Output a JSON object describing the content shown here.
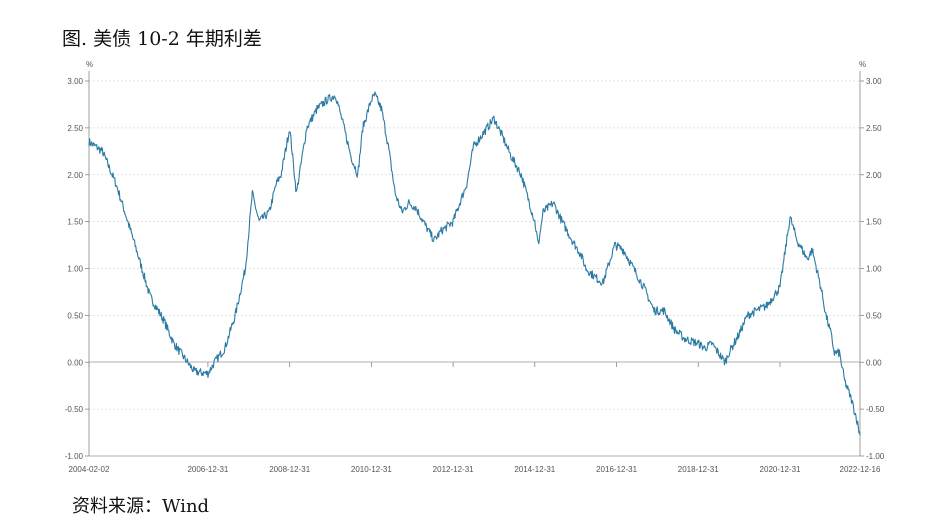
{
  "figure_title": "图. 美债 10-2 年期利差",
  "source_note": "资料来源：Wind",
  "chart_data": {
    "type": "line",
    "title": "图. 美债 10-2 年期利差",
    "xlabel": "",
    "ylabel": "%",
    "ylabel_right": "%",
    "ylim": [
      -1.0,
      3.0
    ],
    "yticks": [
      -1.0,
      -0.5,
      0.0,
      0.5,
      1.0,
      1.5,
      2.0,
      2.5,
      3.0
    ],
    "ytick_labels": [
      "-1.00",
      "-0.50",
      "0.00",
      "0.50",
      "1.00",
      "1.50",
      "2.00",
      "2.50",
      "3.00"
    ],
    "xlim": [
      "2004-02-02",
      "2022-12-16"
    ],
    "xtick_dates": [
      "2004-02-02",
      "2006-12-31",
      "2008-12-31",
      "2010-12-31",
      "2012-12-31",
      "2014-12-31",
      "2016-12-31",
      "2018-12-31",
      "2020-12-31",
      "2022-12-16"
    ],
    "xtick_labels": [
      "2004-02-02",
      "2006-12-31",
      "2008-12-31",
      "2010-12-31",
      "2012-12-31",
      "2014-12-31",
      "2016-12-31",
      "2018-12-31",
      "2020-12-31",
      "2022-12-16"
    ],
    "grid": "horizontal dashed",
    "line_color": "#2a7aa3",
    "series": [
      {
        "x": [
          "2004-02-02",
          "2004-06-01",
          "2004-10-01",
          "2005-01-01",
          "2005-04-01",
          "2005-08-01",
          "2005-12-01",
          "2006-03-01",
          "2006-06-01",
          "2006-09-01",
          "2006-12-31",
          "2007-03-01",
          "2007-06-01",
          "2007-09-01",
          "2007-12-01",
          "2008-02-01",
          "2008-04-01",
          "2008-07-01",
          "2008-09-01",
          "2008-10-15",
          "2008-12-31",
          "2009-03-01",
          "2009-06-01",
          "2009-09-01",
          "2009-12-01",
          "2010-02-15",
          "2010-05-01",
          "2010-07-01",
          "2010-09-01",
          "2010-10-15",
          "2010-12-31",
          "2011-02-01",
          "2011-04-01",
          "2011-06-01",
          "2011-08-01",
          "2011-10-01",
          "2011-12-01",
          "2012-02-01",
          "2012-05-01",
          "2012-07-15",
          "2012-09-15",
          "2012-12-31",
          "2013-03-01",
          "2013-05-01",
          "2013-07-01",
          "2013-09-01",
          "2013-12-31",
          "2014-03-01",
          "2014-06-01",
          "2014-09-01",
          "2014-12-31",
          "2015-01-31",
          "2015-03-15",
          "2015-06-15",
          "2015-09-01",
          "2015-12-01",
          "2016-02-15",
          "2016-04-01",
          "2016-06-30",
          "2016-09-01",
          "2016-12-15",
          "2017-03-01",
          "2017-06-01",
          "2017-09-01",
          "2017-12-01",
          "2018-03-01",
          "2018-06-01",
          "2018-09-01",
          "2018-12-31",
          "2019-03-01",
          "2019-05-01",
          "2019-08-28",
          "2019-10-01",
          "2019-12-31",
          "2020-03-15",
          "2020-06-01",
          "2020-09-01",
          "2020-12-31",
          "2021-03-31",
          "2021-06-01",
          "2021-09-01",
          "2021-10-15",
          "2021-12-31",
          "2022-02-15",
          "2022-04-01",
          "2022-05-01",
          "2022-06-15",
          "2022-08-01",
          "2022-10-01",
          "2022-11-15",
          "2022-12-16"
        ],
        "values": [
          2.35,
          2.25,
          1.9,
          1.55,
          1.2,
          0.7,
          0.45,
          0.2,
          0.05,
          -0.1,
          -0.12,
          0.0,
          0.15,
          0.5,
          1.0,
          1.8,
          1.5,
          1.6,
          1.9,
          2.0,
          2.5,
          1.8,
          2.5,
          2.7,
          2.8,
          2.85,
          2.5,
          2.2,
          2.0,
          2.5,
          2.8,
          2.85,
          2.7,
          2.3,
          1.8,
          1.6,
          1.7,
          1.65,
          1.45,
          1.3,
          1.4,
          1.5,
          1.7,
          1.9,
          2.3,
          2.4,
          2.6,
          2.45,
          2.2,
          2.0,
          1.5,
          1.25,
          1.6,
          1.7,
          1.5,
          1.3,
          1.15,
          1.0,
          0.9,
          0.85,
          1.25,
          1.2,
          1.0,
          0.8,
          0.55,
          0.55,
          0.35,
          0.25,
          0.2,
          0.15,
          0.2,
          0.0,
          0.1,
          0.3,
          0.5,
          0.55,
          0.6,
          0.8,
          1.55,
          1.3,
          1.1,
          1.2,
          0.8,
          0.5,
          0.3,
          0.1,
          0.1,
          -0.2,
          -0.4,
          -0.6,
          -0.78
        ]
      }
    ]
  }
}
